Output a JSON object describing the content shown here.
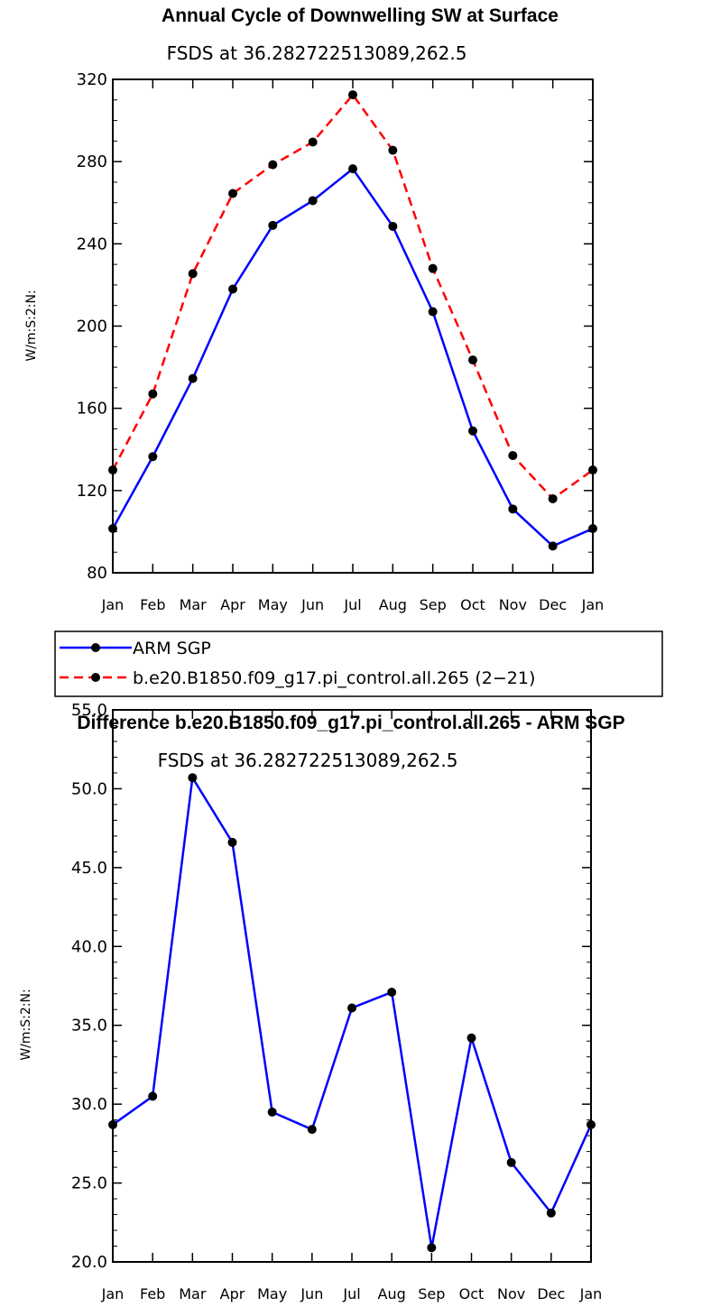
{
  "chart_data": [
    {
      "type": "line",
      "title": "Annual Cycle of Downwelling SW at Surface",
      "subtitle": "FSDS at 36.282722513089,262.5",
      "ylabel": "W/m:S:2:N:",
      "xlabel": "",
      "categories": [
        "Jan",
        "Feb",
        "Mar",
        "Apr",
        "May",
        "Jun",
        "Jul",
        "Aug",
        "Sep",
        "Oct",
        "Nov",
        "Dec",
        "Jan"
      ],
      "ylim": [
        80,
        320
      ],
      "yticks": [
        "80",
        "120",
        "160",
        "200",
        "240",
        "280",
        "320"
      ],
      "legend_position": "below",
      "series": [
        {
          "name": "ARM SGP",
          "color": "#0000ff",
          "dash": "solid",
          "values": [
            101.5,
            136.5,
            174.5,
            218,
            249,
            261,
            276.5,
            248.5,
            207,
            149,
            111,
            93,
            101.5
          ]
        },
        {
          "name": "b.e20.B1850.f09_g17.pi_control.all.265 (2−21)",
          "color": "#ff0000",
          "dash": "dashed",
          "values": [
            130,
            167,
            225.5,
            264.5,
            278.5,
            289.5,
            312.5,
            285.5,
            228,
            183.5,
            137,
            116,
            130
          ]
        }
      ]
    },
    {
      "type": "line",
      "title": "Difference b.e20.B1850.f09_g17.pi_control.all.265 - ARM SGP",
      "subtitle": "FSDS at 36.282722513089,262.5",
      "ylabel": "W/m:S:2:N:",
      "xlabel": "",
      "categories": [
        "Jan",
        "Feb",
        "Mar",
        "Apr",
        "May",
        "Jun",
        "Jul",
        "Aug",
        "Sep",
        "Oct",
        "Nov",
        "Dec",
        "Jan"
      ],
      "ylim": [
        20,
        55
      ],
      "yticks": [
        "20.0",
        "25.0",
        "30.0",
        "35.0",
        "40.0",
        "45.0",
        "50.0",
        "55.0"
      ],
      "series": [
        {
          "color": "#0000ff",
          "dash": "solid",
          "values": [
            28.7,
            30.5,
            50.7,
            46.6,
            29.5,
            28.4,
            36.1,
            37.1,
            20.9,
            34.2,
            26.3,
            23.1,
            28.7
          ]
        }
      ]
    }
  ]
}
